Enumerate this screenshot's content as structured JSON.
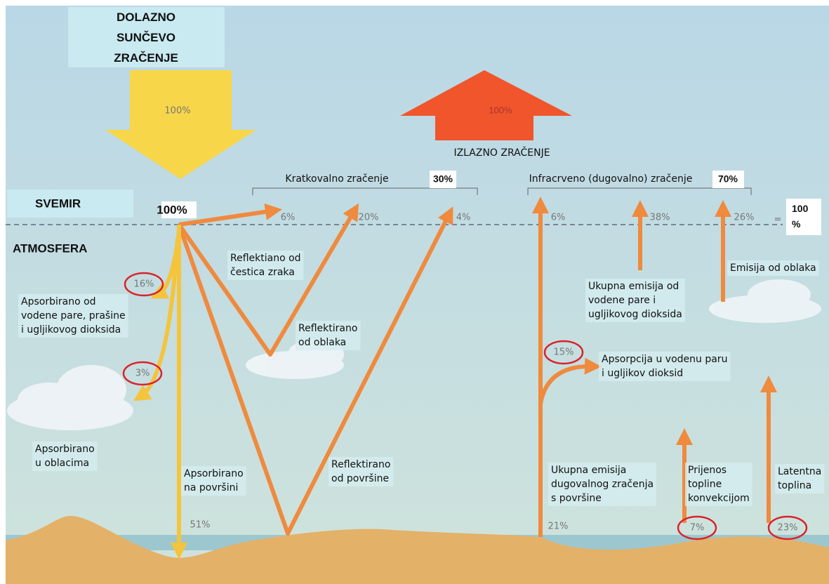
{
  "incoming": {
    "title": [
      "DOLAZNO",
      "SUNČEVO",
      "ZRAČENJE"
    ],
    "percent": "100%"
  },
  "outgoing": {
    "percent": "100%",
    "title": "IZLAZNO ZRAČENJE"
  },
  "shortwave": {
    "label": "Kratkovalno zračenje",
    "total": "30%"
  },
  "longwave": {
    "label": "Infracrveno (dugovalno) zračenje",
    "total": "70%"
  },
  "layers": {
    "space": "SVEMIR",
    "atmosphere": "ATMOSFERA"
  },
  "top_total": {
    "start": "100%",
    "equals": "=",
    "sum": [
      "100",
      "%"
    ]
  },
  "top_percents": [
    "6%",
    "20%",
    "4%",
    "6%",
    "38%",
    "26%"
  ],
  "notes": [
    {
      "lines": [
        "Reflektiano od",
        "čestica zraka"
      ]
    },
    {
      "lines": [
        "Apsorbirano od",
        "vodene pare, prašine",
        "i ugljikovog dioksida"
      ],
      "percent": "16%"
    },
    {
      "lines": [
        "Reflektirano",
        "od oblaka"
      ]
    },
    {
      "lines": [
        "Apsorbirano",
        "u oblacima"
      ],
      "percent": "3%"
    },
    {
      "lines": [
        "Apsorbirano",
        "na površini"
      ],
      "percent": "51%"
    },
    {
      "lines": [
        "Reflektirano",
        "od površine"
      ]
    },
    {
      "lines": [
        "Ukupna emisija od",
        "vodene pare i",
        "ugljikovog dioksida"
      ]
    },
    {
      "lines": [
        "Emisija od oblaka"
      ]
    },
    {
      "lines": [
        "Apsorpcija u vodenu paru",
        "i ugljikov dioksid"
      ],
      "percent": "15%"
    },
    {
      "lines": [
        "Ukupna emisija",
        "dugovalnog zračenja",
        "s površine"
      ],
      "percent": "21%"
    },
    {
      "lines": [
        "Prijenos",
        "topline",
        "konvekcijom"
      ],
      "percent": "7%"
    },
    {
      "lines": [
        "Latentna",
        "toplina"
      ],
      "percent": "23%"
    }
  ]
}
